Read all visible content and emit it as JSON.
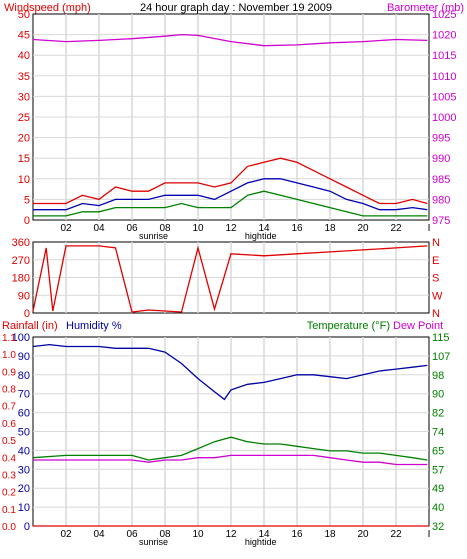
{
  "title": "24 hour graph day : November 19 2009",
  "colors": {
    "wind_gust": "#e00000",
    "wind_avg": "#0000b0",
    "wind_min": "#008000",
    "barometer": "#d000d0",
    "direction": "#e00000",
    "humidity": "#0000a0",
    "temperature": "#008000",
    "dewpoint": "#d000d0",
    "rainfall": "#e00000",
    "grid": "#d8d8d8"
  },
  "x_ticks": [
    "02",
    "04",
    "06",
    "08",
    "10",
    "12",
    "14",
    "16",
    "18",
    "20",
    "22",
    "I"
  ],
  "markers": {
    "sunrise": "sunrise",
    "hightide": "hightide"
  },
  "chart_data": [
    {
      "type": "line",
      "labels": {
        "left": "Windspeed (mph)",
        "right": "Barometer (mb)"
      },
      "y_left_ticks": [
        "0",
        "5",
        "10",
        "15",
        "20",
        "25",
        "30",
        "35",
        "40",
        "45",
        "50"
      ],
      "y_left_range": [
        0,
        50
      ],
      "y_right_ticks": [
        "975",
        "980",
        "985",
        "990",
        "995",
        "1000",
        "1005",
        "1010",
        "1015",
        "1020",
        "1025"
      ],
      "y_right_range": [
        975,
        1025
      ],
      "x_range_hours": [
        0,
        24
      ],
      "series": [
        {
          "key": "barometer",
          "axis": "right",
          "x": [
            0,
            2,
            4,
            6,
            8,
            9,
            10,
            12,
            14,
            16,
            18,
            20,
            22,
            23.9
          ],
          "y": [
            1018.8,
            1018.3,
            1018.6,
            1019.0,
            1019.6,
            1020.0,
            1019.8,
            1018.3,
            1017.3,
            1017.5,
            1018.0,
            1018.3,
            1018.8,
            1018.6
          ]
        },
        {
          "key": "wind_gust",
          "axis": "left",
          "x": [
            0,
            1,
            2,
            3,
            4,
            5,
            6,
            7,
            8,
            9,
            10,
            11,
            12,
            13,
            14,
            15,
            16,
            17,
            18,
            19,
            20,
            21,
            22,
            23,
            23.9
          ],
          "y": [
            4,
            4,
            4,
            6,
            5,
            8,
            7,
            7,
            9,
            9,
            9,
            8,
            9,
            13,
            14,
            15,
            14,
            12,
            10,
            8,
            6,
            4,
            4,
            5,
            4
          ]
        },
        {
          "key": "wind_avg",
          "axis": "left",
          "x": [
            0,
            1,
            2,
            3,
            4,
            5,
            6,
            7,
            8,
            9,
            10,
            11,
            12,
            13,
            14,
            15,
            16,
            17,
            18,
            19,
            20,
            21,
            22,
            23,
            23.9
          ],
          "y": [
            2.5,
            2.5,
            2.5,
            4,
            3.5,
            5,
            5,
            5,
            6,
            6,
            6,
            5,
            7,
            9,
            10,
            10,
            9,
            8,
            7,
            5,
            4,
            2.5,
            2.5,
            3,
            2.5
          ]
        },
        {
          "key": "wind_min",
          "axis": "left",
          "x": [
            0,
            1,
            2,
            3,
            4,
            5,
            6,
            7,
            8,
            9,
            10,
            11,
            12,
            13,
            14,
            15,
            16,
            17,
            18,
            19,
            20,
            21,
            22,
            23,
            23.9
          ],
          "y": [
            1,
            1,
            1,
            2,
            2,
            3,
            3,
            3,
            3,
            4,
            3,
            3,
            3,
            6,
            7,
            6,
            5,
            4,
            3,
            2,
            1,
            1,
            1,
            1,
            1
          ]
        }
      ]
    },
    {
      "type": "line",
      "labels": {},
      "y_left_ticks": [
        "0",
        "90",
        "180",
        "270",
        "360"
      ],
      "y_left_range": [
        0,
        360
      ],
      "y_right_ticks": [
        "N",
        "W",
        "S",
        "E",
        "N"
      ],
      "x_range_hours": [
        0,
        24
      ],
      "series": [
        {
          "key": "direction",
          "axis": "left",
          "x": [
            0,
            0.8,
            1.2,
            2,
            3,
            4,
            5,
            6,
            7,
            8,
            9,
            10,
            11,
            12,
            14,
            16,
            18,
            20,
            22,
            23.9
          ],
          "y": [
            10,
            330,
            10,
            340,
            340,
            340,
            330,
            5,
            15,
            10,
            5,
            330,
            20,
            300,
            290,
            300,
            310,
            320,
            330,
            340
          ]
        }
      ]
    },
    {
      "type": "line",
      "labels": {
        "rainfall": "Rainfall (in)",
        "humidity": "Humidity %",
        "temperature": "Temperature (°F)",
        "dewpoint": "Dew Point"
      },
      "y_left_ticks": [
        "0",
        "10",
        "20",
        "30",
        "40",
        "50",
        "60",
        "70",
        "80",
        "90",
        "100"
      ],
      "y_left_range": [
        0,
        100
      ],
      "y_rain_ticks": [
        "0.0",
        "0.1",
        "0.2",
        "0.3",
        "0.4",
        "0.5",
        "0.6",
        "0.7",
        "0.8",
        "0.9",
        "1.0",
        "1.1"
      ],
      "y_rain_range": [
        0,
        1.1
      ],
      "y_right_ticks": [
        "32",
        "40",
        "49",
        "57",
        "65",
        "74",
        "82",
        "90",
        "98",
        "107",
        "115"
      ],
      "y_right_range": [
        32,
        115
      ],
      "x_range_hours": [
        0,
        24
      ],
      "series": [
        {
          "key": "humidity",
          "axis": "left",
          "x": [
            0,
            1,
            2,
            3,
            4,
            5,
            6,
            7,
            8,
            9,
            10,
            11,
            11.6,
            12,
            13,
            14,
            15,
            16,
            17,
            18,
            19,
            20,
            21,
            22,
            23,
            23.9
          ],
          "y": [
            95,
            96,
            95,
            95,
            95,
            94,
            94,
            94,
            92,
            86,
            78,
            71,
            67,
            72,
            75,
            76,
            78,
            80,
            80,
            79,
            78,
            80,
            82,
            83,
            84,
            85
          ]
        },
        {
          "key": "temperature",
          "axis": "right",
          "x": [
            0,
            2,
            4,
            6,
            7,
            8,
            9,
            10,
            11,
            12,
            13,
            14,
            15,
            16,
            17,
            18,
            19,
            20,
            21,
            22,
            23,
            23.9
          ],
          "y": [
            62,
            63,
            63,
            63,
            61,
            62,
            63,
            66,
            69,
            71,
            69,
            68,
            68,
            67,
            66,
            65,
            65,
            64,
            64,
            63,
            62,
            61
          ]
        },
        {
          "key": "dewpoint",
          "axis": "right",
          "x": [
            0,
            2,
            4,
            6,
            7,
            8,
            9,
            10,
            11,
            12,
            13,
            14,
            15,
            16,
            17,
            18,
            19,
            20,
            21,
            22,
            23,
            23.9
          ],
          "y": [
            61,
            61,
            61,
            61,
            60,
            61,
            61,
            62,
            62,
            63,
            63,
            63,
            63,
            63,
            63,
            62,
            61,
            60,
            60,
            59,
            59,
            59
          ]
        },
        {
          "key": "rainfall",
          "axis": "rain",
          "x": [
            0,
            24
          ],
          "y": [
            0,
            0
          ]
        }
      ]
    }
  ]
}
